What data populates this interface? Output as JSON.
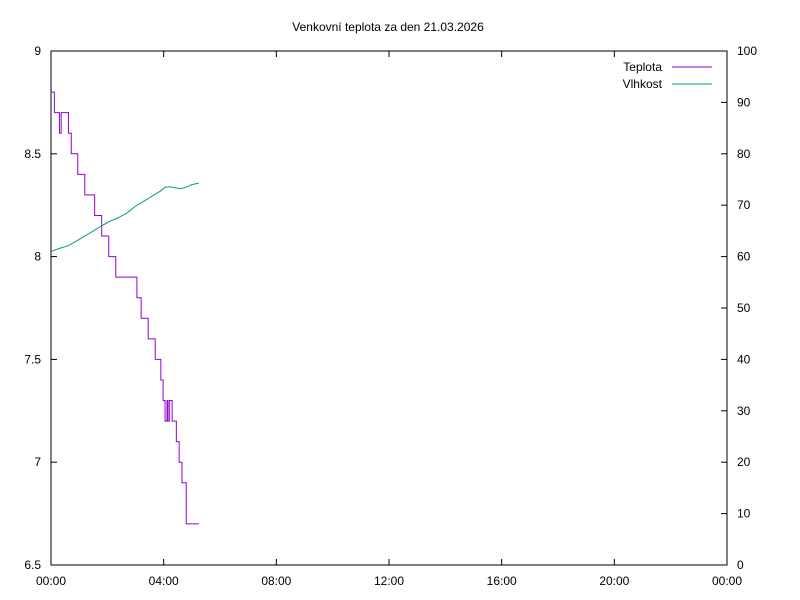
{
  "chart_data": {
    "type": "line",
    "title": "Venkovní teplota za den 21.03.2026",
    "xlabel": "",
    "ylabel": "",
    "y2label": "",
    "x_unit": "hours",
    "xlim": [
      0,
      24
    ],
    "x_ticks": [
      "00:00",
      "04:00",
      "08:00",
      "12:00",
      "16:00",
      "20:00",
      "00:00"
    ],
    "x_tick_values": [
      0,
      4,
      8,
      12,
      16,
      20,
      24
    ],
    "ylim": [
      6.5,
      9
    ],
    "y_ticks": [
      "9",
      "8.5",
      "8",
      "7.5",
      "7",
      "6.5"
    ],
    "y_tick_values": [
      9,
      8.5,
      8,
      7.5,
      7,
      6.5
    ],
    "y2lim": [
      0,
      100
    ],
    "y2_ticks": [
      "100",
      "90",
      "80",
      "70",
      "60",
      "50",
      "40",
      "30",
      "20",
      "10",
      "0"
    ],
    "y2_tick_values": [
      100,
      90,
      80,
      70,
      60,
      50,
      40,
      30,
      20,
      10,
      0
    ],
    "grid": false,
    "legend_position": "top-right",
    "series": [
      {
        "name": "Teplota",
        "axis": "left",
        "color": "#9400d3",
        "step": true,
        "x": [
          0.0,
          0.12,
          0.3,
          0.36,
          0.4,
          0.62,
          0.72,
          0.95,
          1.2,
          1.55,
          1.8,
          2.05,
          2.3,
          2.75,
          3.05,
          3.2,
          3.45,
          3.7,
          3.9,
          3.98,
          4.05,
          4.12,
          4.15,
          4.2,
          4.3,
          4.45,
          4.55,
          4.65,
          4.8,
          5.25
        ],
        "y": [
          8.8,
          8.7,
          8.6,
          8.7,
          8.7,
          8.6,
          8.5,
          8.4,
          8.3,
          8.2,
          8.1,
          8.0,
          7.9,
          7.9,
          7.8,
          7.7,
          7.6,
          7.5,
          7.4,
          7.3,
          7.2,
          7.3,
          7.2,
          7.3,
          7.2,
          7.1,
          7.0,
          6.9,
          6.7,
          6.7
        ]
      },
      {
        "name": "Vlhkost",
        "axis": "right",
        "color": "#009e73",
        "step": false,
        "x": [
          0.0,
          0.3,
          0.6,
          0.9,
          1.2,
          1.5,
          1.8,
          2.1,
          2.4,
          2.7,
          3.0,
          3.3,
          3.6,
          3.9,
          4.05,
          4.2,
          4.4,
          4.6,
          4.8,
          5.0,
          5.25
        ],
        "y": [
          61.0,
          61.6,
          62.1,
          63.0,
          64.0,
          65.0,
          66.0,
          66.9,
          67.6,
          68.5,
          69.8,
          70.8,
          71.8,
          72.8,
          73.5,
          73.6,
          73.4,
          73.2,
          73.5,
          74.0,
          74.3
        ]
      }
    ]
  }
}
